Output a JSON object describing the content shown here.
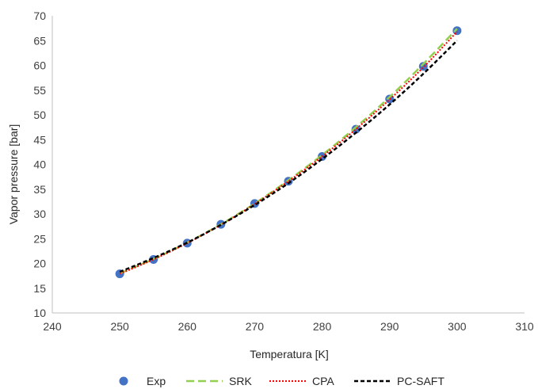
{
  "chart_data": {
    "type": "scatter",
    "xlabel": "Temperatura [K]",
    "ylabel": "Vapor pressure [bar]",
    "xlim": [
      240,
      310
    ],
    "ylim": [
      10,
      70
    ],
    "xticks": [
      240,
      250,
      260,
      270,
      280,
      290,
      300,
      310
    ],
    "yticks": [
      10,
      15,
      20,
      25,
      30,
      35,
      40,
      45,
      50,
      55,
      60,
      65,
      70
    ],
    "grid": false,
    "legend_position": "bottom",
    "series": [
      {
        "name": "Exp",
        "kind": "markers",
        "color": "#4472C4",
        "x": [
          250,
          255,
          260,
          265,
          270,
          275,
          280,
          285,
          290,
          295,
          300
        ],
        "y": [
          17.9,
          20.8,
          24.1,
          27.9,
          32.1,
          36.6,
          41.6,
          47.1,
          53.2,
          59.8,
          67.0
        ]
      },
      {
        "name": "SRK",
        "kind": "line",
        "dash": "long-dash",
        "color": "#92D050",
        "x": [
          250,
          255,
          260,
          265,
          270,
          275,
          280,
          285,
          290,
          295,
          300
        ],
        "y": [
          18.0,
          20.9,
          24.2,
          27.9,
          32.1,
          36.8,
          41.9,
          47.5,
          53.6,
          60.3,
          67.4
        ]
      },
      {
        "name": "CPA",
        "kind": "line",
        "dash": "dotted",
        "color": "#FF0000",
        "x": [
          250,
          255,
          260,
          265,
          270,
          275,
          280,
          285,
          290,
          295,
          300
        ],
        "y": [
          17.9,
          20.8,
          24.1,
          27.8,
          32.0,
          36.6,
          41.6,
          47.1,
          53.1,
          59.6,
          66.8
        ]
      },
      {
        "name": "PC-SAFT",
        "kind": "line",
        "dash": "short-dash",
        "color": "#000000",
        "x": [
          250,
          255,
          260,
          265,
          270,
          275,
          280,
          285,
          290,
          295,
          300
        ],
        "y": [
          18.3,
          21.1,
          24.2,
          27.8,
          31.8,
          36.2,
          41.1,
          46.4,
          52.1,
          58.3,
          65.0
        ]
      }
    ]
  }
}
